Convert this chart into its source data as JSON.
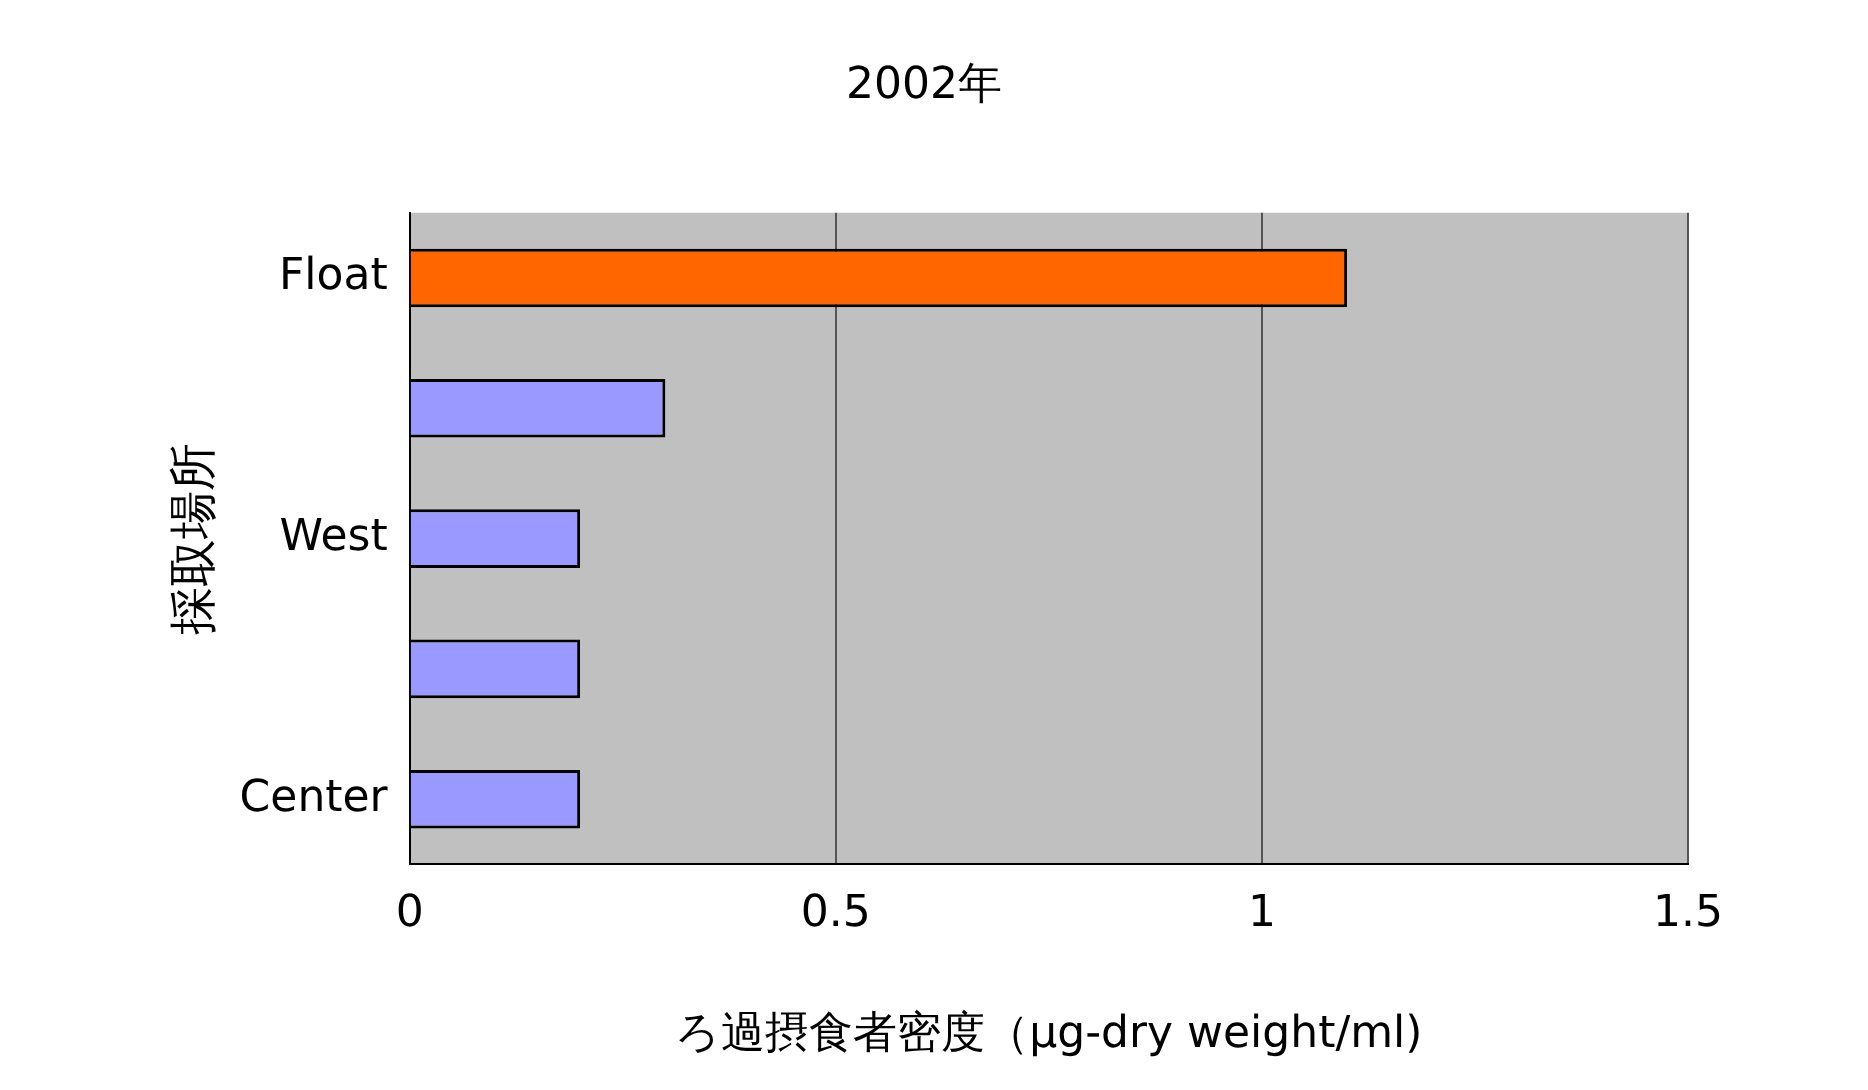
{
  "chart_data": {
    "type": "bar",
    "orientation": "horizontal",
    "title": "2002年",
    "xlabel": "ろ過摂食者密度（μg-dry weight/ml)",
    "ylabel": "採取場所",
    "categories": [
      "Float",
      null,
      "West",
      null,
      "Center"
    ],
    "values": [
      1.1,
      0.3,
      0.2,
      0.2,
      0.2
    ],
    "colors": [
      "#ff6600",
      "#9999ff",
      "#9999ff",
      "#9999ff",
      "#9999ff"
    ],
    "xlim": [
      0,
      1.5
    ],
    "xticks": [
      0,
      0.5,
      1,
      1.5
    ],
    "grid": "x",
    "legend": false
  }
}
